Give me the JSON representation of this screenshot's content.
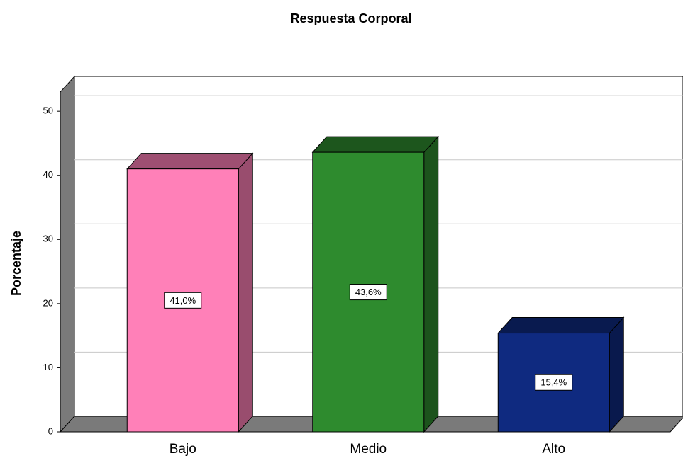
{
  "chart_data": {
    "type": "bar3d",
    "title": "Respuesta Corporal",
    "y_label": "Porcentaje",
    "categories": [
      "Bajo",
      "Medio",
      "Alto"
    ],
    "values": [
      41.0,
      43.6,
      15.4
    ],
    "value_labels": [
      "41,0%",
      "43,6%",
      "15,4%"
    ],
    "colors": [
      "#ff80b8",
      "#2e8b2e",
      "#0f2a80"
    ],
    "ylim": [
      0,
      53
    ],
    "yticks": [
      0,
      10,
      20,
      30,
      40,
      50
    ],
    "grid": true
  }
}
